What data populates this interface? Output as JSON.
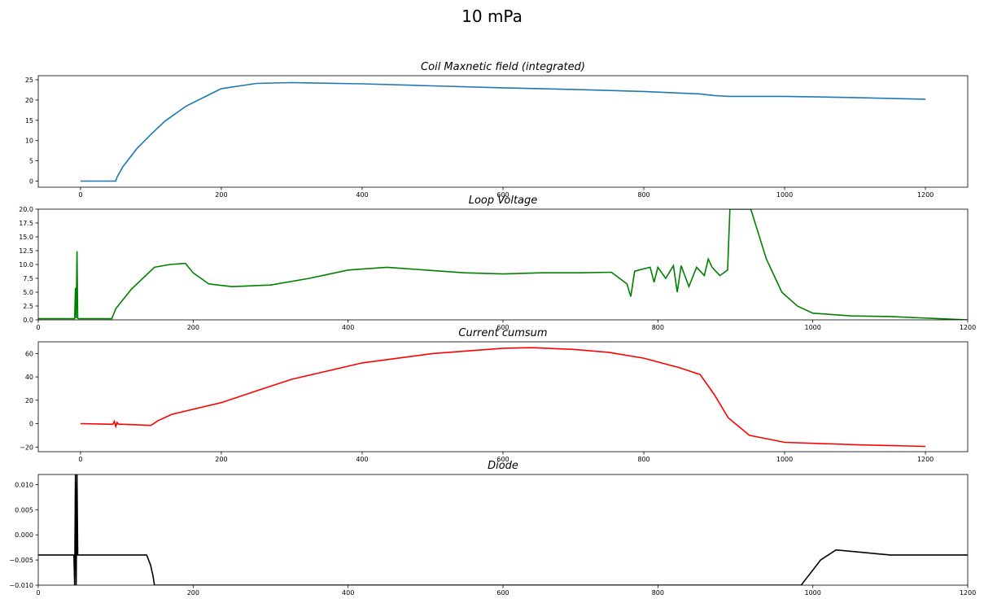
{
  "figure": {
    "title": "10 mPa"
  },
  "chart_data": [
    {
      "type": "line",
      "title": "Coil Maxnetic field (integrated)",
      "color": "#1f77b4",
      "xlim": [
        -60,
        1260
      ],
      "ylim": [
        -1.5,
        26
      ],
      "xticks": [
        0,
        200,
        400,
        600,
        800,
        1000,
        1200
      ],
      "yticks": [
        0,
        5,
        10,
        15,
        20,
        25
      ],
      "ytick_labels": [
        "0",
        "5",
        "10",
        "15",
        "20",
        "25"
      ],
      "series": [
        {
          "x": [
            0,
            48,
            50,
            52,
            60,
            80,
            100,
            120,
            150,
            200,
            250,
            300,
            400,
            500,
            600,
            700,
            800,
            880,
            900,
            920,
            1000,
            1100,
            1200
          ],
          "y": [
            0,
            0,
            0,
            1,
            3.5,
            8,
            11.5,
            14.8,
            18.5,
            22.8,
            24.1,
            24.3,
            24,
            23.5,
            23,
            22.6,
            22.1,
            21.5,
            21.1,
            20.9,
            20.9,
            20.6,
            20.2
          ]
        }
      ]
    },
    {
      "type": "line",
      "title": "Loop Voltage",
      "color": "#008000",
      "xlim": [
        0,
        1200
      ],
      "ylim": [
        0,
        20
      ],
      "xticks": [
        0,
        200,
        400,
        600,
        800,
        1000,
        1200
      ],
      "yticks": [
        0,
        2.5,
        5,
        7.5,
        10,
        12.5,
        15,
        17.5,
        20
      ],
      "ytick_labels": [
        "0.0",
        "2.5",
        "5.0",
        "7.5",
        "10.0",
        "12.5",
        "15.0",
        "17.5",
        "20.0"
      ],
      "series": [
        {
          "x": [
            0,
            47,
            48,
            49,
            50,
            51,
            52,
            95,
            100,
            120,
            150,
            170,
            190,
            200,
            220,
            250,
            300,
            350,
            400,
            450,
            500,
            550,
            600,
            650,
            700,
            740,
            760,
            765,
            770,
            790,
            795,
            800,
            810,
            820,
            825,
            830,
            840,
            850,
            860,
            865,
            870,
            880,
            890,
            893,
            895,
            900,
            920,
            940,
            960,
            980,
            1000,
            1050,
            1100,
            1150,
            1200
          ],
          "y": [
            0.2,
            0.2,
            5.8,
            0.3,
            12.4,
            0.3,
            0.2,
            0.2,
            2,
            5.5,
            9.5,
            10,
            10.2,
            8.5,
            6.5,
            6,
            6.3,
            7.5,
            9,
            9.5,
            9,
            8.5,
            8.3,
            8.5,
            8.5,
            8.6,
            6.5,
            4.2,
            8.8,
            9.5,
            6.8,
            9.5,
            7.5,
            9.8,
            5,
            9.8,
            6,
            9.5,
            8,
            11,
            9.5,
            8,
            9,
            20,
            20,
            20,
            20,
            11,
            5,
            2.5,
            1.2,
            0.7,
            0.6,
            0.3,
            0
          ]
        }
      ]
    },
    {
      "type": "line",
      "title": "Current cumsum",
      "color": "#ff0000",
      "xlim": [
        -60,
        1260
      ],
      "ylim": [
        -24,
        70
      ],
      "xticks": [
        0,
        200,
        400,
        600,
        800,
        1000,
        1200
      ],
      "yticks": [
        -20,
        0,
        20,
        40,
        60
      ],
      "ytick_labels": [
        "−20",
        "0",
        "20",
        "40",
        "60"
      ],
      "series": [
        {
          "x": [
            0,
            46,
            48,
            50,
            52,
            54,
            60,
            100,
            110,
            130,
            200,
            250,
            300,
            400,
            500,
            600,
            640,
            700,
            750,
            800,
            850,
            880,
            900,
            920,
            950,
            1000,
            1100,
            1200
          ],
          "y": [
            0,
            -0.5,
            2,
            -2.5,
            1,
            -0.5,
            -0.5,
            -1.5,
            2.5,
            8,
            18,
            28,
            38,
            52,
            60,
            64.5,
            65,
            63.5,
            61,
            56,
            48,
            42,
            25,
            5,
            -10,
            -16,
            -18,
            -19.5
          ]
        }
      ]
    },
    {
      "type": "line",
      "title": "Diode",
      "color": "#000000",
      "xlim": [
        0,
        1200
      ],
      "ylim": [
        -0.01,
        0.012
      ],
      "xticks": [
        0,
        200,
        400,
        600,
        800,
        1000,
        1200
      ],
      "yticks": [
        -0.01,
        -0.005,
        0,
        0.005,
        0.01
      ],
      "ytick_labels": [
        "−0.010",
        "−0.005",
        "0.000",
        "0.005",
        "0.010"
      ],
      "series": [
        {
          "x": [
            0,
            46,
            47,
            48,
            49,
            50,
            51,
            52,
            140,
            145,
            148,
            150,
            152,
            155,
            985,
            990,
            1000,
            1010,
            1020,
            1030,
            1100,
            1200
          ],
          "y": [
            -0.004,
            -0.004,
            -0.01,
            0.012,
            -0.01,
            0.012,
            -0.004,
            -0.004,
            -0.004,
            -0.006,
            -0.008,
            -0.01,
            -0.01,
            -0.01,
            -0.01,
            -0.009,
            -0.007,
            -0.005,
            -0.004,
            -0.003,
            -0.004,
            -0.004
          ]
        }
      ]
    }
  ]
}
